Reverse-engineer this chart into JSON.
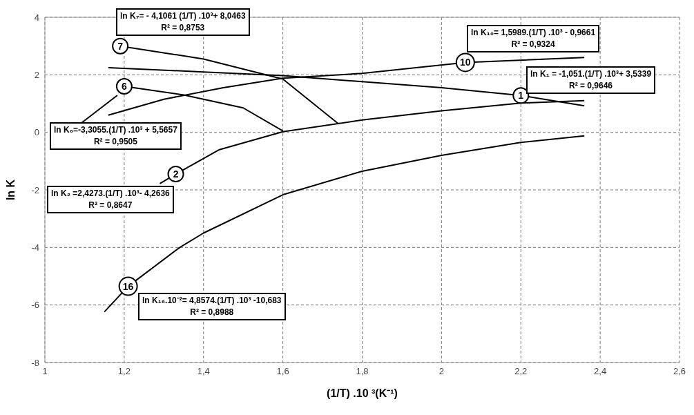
{
  "chart_data": {
    "type": "line",
    "xlabel": "(1/T) .10 ³(K⁻¹)",
    "ylabel": "ln K",
    "xlim": [
      1,
      2.6
    ],
    "xticks": [
      {
        "value": 1,
        "label": "1"
      },
      {
        "value": 1.2,
        "label": "1,2"
      },
      {
        "value": 1.4,
        "label": "1,4"
      },
      {
        "value": 1.6,
        "label": "1,6"
      },
      {
        "value": 1.8,
        "label": "1,8"
      },
      {
        "value": 2,
        "label": "2"
      },
      {
        "value": 2.2,
        "label": "2,2"
      },
      {
        "value": 2.4,
        "label": "2,4"
      },
      {
        "value": 2.6,
        "label": "2,6"
      }
    ],
    "ylim": [
      -8,
      4
    ],
    "yticks": [
      -8,
      -6,
      -4,
      -2,
      0,
      2,
      4
    ],
    "grid": true,
    "marker": "none",
    "line_style": "solid",
    "series": [
      {
        "color": "#000000",
        "x": [
          1.19,
          1.4,
          1.6,
          1.74
        ],
        "values": [
          3.0,
          2.55,
          1.85,
          0.3
        ]
      },
      {
        "color": "#000000",
        "x": [
          1.2,
          1.35,
          1.5,
          1.6
        ],
        "values": [
          1.6,
          1.3,
          0.85,
          0.05
        ]
      },
      {
        "color": "#000000",
        "x": [
          1.16,
          1.3,
          1.45,
          1.6,
          1.8,
          2.06,
          2.36
        ],
        "values": [
          0.6,
          1.15,
          1.55,
          1.88,
          2.05,
          2.43,
          2.6
        ]
      },
      {
        "color": "#000000",
        "x": [
          1.16,
          1.4,
          1.6,
          1.8,
          2.0,
          2.2,
          2.36
        ],
        "values": [
          2.25,
          2.1,
          1.97,
          1.76,
          1.55,
          1.28,
          0.92
        ]
      },
      {
        "color": "#000000",
        "x": [
          1.29,
          1.33,
          1.44,
          1.6,
          1.8,
          2.0,
          2.2,
          2.36
        ],
        "values": [
          -1.78,
          -1.45,
          -0.6,
          0.02,
          0.43,
          0.75,
          1.02,
          1.1
        ]
      },
      {
        "color": "#000000",
        "x": [
          1.15,
          1.21,
          1.34,
          1.4,
          1.6,
          1.8,
          2.0,
          2.2,
          2.36
        ],
        "values": [
          -6.24,
          -5.35,
          -4.0,
          -3.5,
          -2.17,
          -1.35,
          -0.8,
          -0.35,
          -0.12
        ]
      }
    ],
    "annotations": [
      {
        "text": "7",
        "x": 1.19,
        "y": 3.0
      },
      {
        "text": "6",
        "x": 1.2,
        "y": 1.6
      },
      {
        "text": "10",
        "x": 2.06,
        "y": 2.43
      },
      {
        "text": "1",
        "x": 2.2,
        "y": 1.28
      },
      {
        "text": "2",
        "x": 1.33,
        "y": -1.45
      },
      {
        "text": "16",
        "x": 1.21,
        "y": -5.35
      },
      "ln K₇= - 4,1061 (1/T) .10³+ 8,0463\nR² = 0,8753",
      "ln K₁₀= 1,5989.(1/T) .10³ - 0,9661\nR² = 0,9324",
      "ln K₁ = -1,051.(1/T) .10³+ 3,5339\nR² = 0,9646",
      "ln K₆=-3,3055.(1/T) .10³ + 5,5657\nR² = 0,9505",
      "ln K₂ =2,4273.(1/T) .10³- 4,2636\nR² = 0,8647",
      "ln K₁₆.10⁻²= 4,8574.(1/T) .10³ -10,683\nR² = 0,8988"
    ]
  }
}
